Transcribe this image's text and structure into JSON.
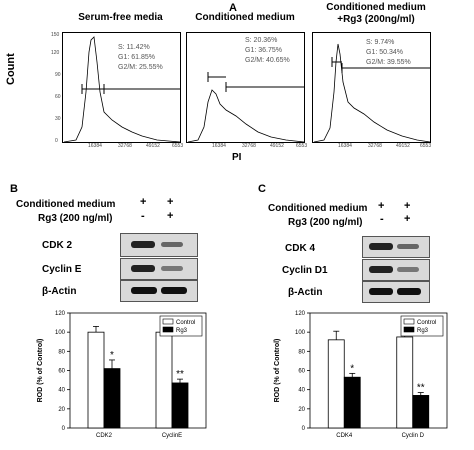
{
  "panel_a": {
    "letter": "A",
    "y_label": "Count",
    "x_label": "PI",
    "histograms": [
      {
        "title_lines": [
          "Serum-free media"
        ],
        "s": "S: 11.42%",
        "g1": "G1: 61.85%",
        "g2m": "G2/M: 25.55%"
      },
      {
        "title_lines": [
          "Conditioned medium"
        ],
        "s": "S: 20.36%",
        "g1": "G1: 36.75%",
        "g2m": "G2/M: 40.65%"
      },
      {
        "title_lines": [
          "Conditioned medium",
          "+Rg3 (200ng/ml)"
        ],
        "s": "S: 9.74%",
        "g1": "G1: 50.34%",
        "g2m": "G2/M: 39.55%"
      }
    ],
    "y_ticks": [
      "0",
      "30",
      "60",
      "90",
      "120",
      "150"
    ],
    "x_ticks": [
      "16384",
      "32768",
      "49152",
      "6553"
    ]
  },
  "panel_b": {
    "letter": "B",
    "treatment_rows": [
      {
        "label": "Conditioned medium",
        "marks": [
          "+",
          "+"
        ]
      },
      {
        "label": "Rg3 (200 ng/ml)",
        "marks": [
          "-",
          "+"
        ]
      }
    ],
    "blots": [
      "CDK 2",
      "Cyclin E",
      "β-Actin"
    ]
  },
  "panel_c": {
    "letter": "C",
    "treatment_rows": [
      {
        "label": "Conditioned medium",
        "marks": [
          "+",
          "+"
        ]
      },
      {
        "label": "Rg3 (200 ng/ml)",
        "marks": [
          "-",
          "+"
        ]
      }
    ],
    "blots": [
      "CDK 4",
      "Cyclin D1",
      "β-Actin"
    ]
  },
  "chart_data": [
    {
      "type": "bar",
      "categories": [
        "CDK2",
        "CyclinE"
      ],
      "series": [
        {
          "name": "Control",
          "values": [
            100,
            100
          ],
          "errors": [
            6,
            5
          ]
        },
        {
          "name": "Rg3",
          "values": [
            62,
            47
          ],
          "errors": [
            9,
            4
          ]
        }
      ],
      "significance": [
        "*",
        "**"
      ],
      "ylabel": "ROD (% of Control)",
      "ylim": [
        0,
        120
      ],
      "yticks": [
        "0",
        "20",
        "40",
        "60",
        "80",
        "100",
        "120"
      ],
      "legend_position": "top-right"
    },
    {
      "type": "bar",
      "categories": [
        "CDK4",
        "Cyclin D"
      ],
      "series": [
        {
          "name": "Control",
          "values": [
            92,
            95
          ],
          "errors": [
            9,
            9
          ]
        },
        {
          "name": "Rg3",
          "values": [
            53,
            34
          ],
          "errors": [
            4,
            3
          ]
        }
      ],
      "significance": [
        "*",
        "**"
      ],
      "ylabel": "ROD (% of Control)",
      "ylim": [
        0,
        120
      ],
      "yticks": [
        "0",
        "20",
        "40",
        "60",
        "80",
        "100",
        "120"
      ],
      "legend_position": "top-right"
    }
  ]
}
